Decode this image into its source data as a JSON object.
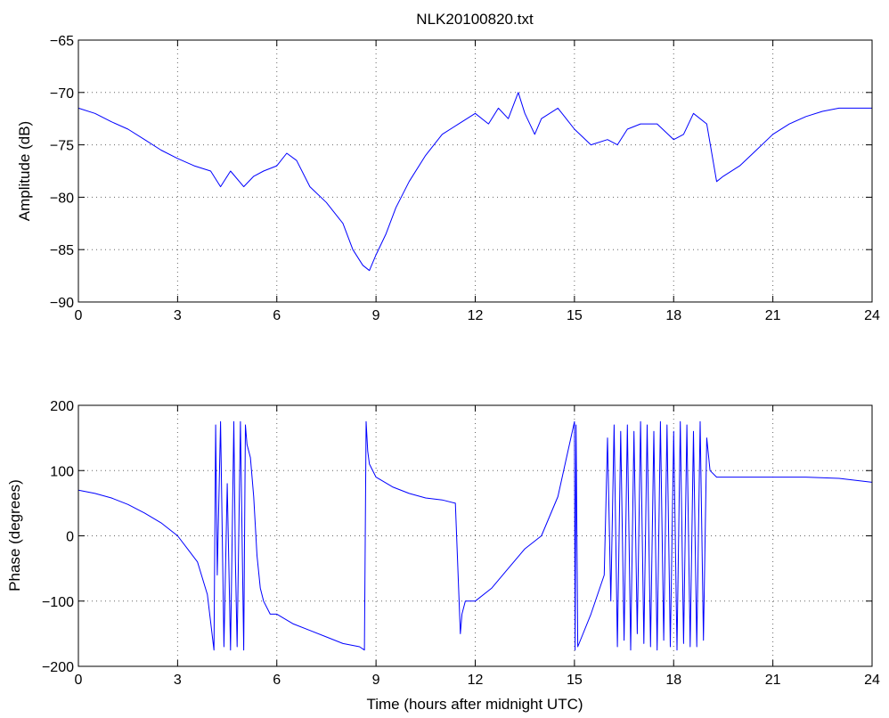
{
  "title": "NLK20100820.txt",
  "colors": {
    "series": "#0000ff",
    "axes": "#000000",
    "background": "#ffffff"
  },
  "chart_data": [
    {
      "type": "line",
      "title": "NLK20100820.txt",
      "xlabel": "",
      "ylabel": "Amplitude (dB)",
      "xlim": [
        0,
        24
      ],
      "ylim": [
        -90,
        -65
      ],
      "xticks": [
        0,
        3,
        6,
        9,
        12,
        15,
        18,
        21,
        24
      ],
      "yticks": [
        -90,
        -85,
        -80,
        -75,
        -70,
        -65
      ],
      "xtick_labels": [
        "0",
        "3",
        "6",
        "9",
        "12",
        "15",
        "18",
        "21",
        "24"
      ],
      "ytick_labels": [
        "−90",
        "−85",
        "−80",
        "−75",
        "−70",
        "−65"
      ],
      "grid": true,
      "legend": "none",
      "series": [
        {
          "color": "#0000ff",
          "x": [
            0,
            0.5,
            1,
            1.5,
            2,
            2.5,
            3,
            3.5,
            4,
            4.3,
            4.6,
            5,
            5.3,
            5.6,
            6,
            6.3,
            6.6,
            7,
            7.5,
            8,
            8.3,
            8.6,
            8.8,
            9,
            9.3,
            9.6,
            10,
            10.5,
            11,
            11.5,
            12,
            12.4,
            12.7,
            13,
            13.3,
            13.5,
            13.8,
            14,
            14.5,
            15,
            15.5,
            16,
            16.3,
            16.6,
            17,
            17.5,
            18,
            18.3,
            18.6,
            19,
            19.3,
            19.5,
            20,
            20.5,
            21,
            21.5,
            22,
            22.5,
            23,
            23.5,
            24
          ],
          "y": [
            -71.5,
            -72,
            -72.8,
            -73.5,
            -74.5,
            -75.5,
            -76.3,
            -77,
            -77.5,
            -79,
            -77.5,
            -79,
            -78,
            -77.5,
            -77,
            -75.8,
            -76.5,
            -79,
            -80.5,
            -82.5,
            -85,
            -86.5,
            -87,
            -85.5,
            -83.5,
            -81,
            -78.5,
            -76,
            -74,
            -73,
            -72,
            -73,
            -71.5,
            -72.5,
            -70,
            -72,
            -74,
            -72.5,
            -71.5,
            -73.5,
            -75,
            -74.5,
            -75,
            -73.5,
            -73,
            -73,
            -74.5,
            -74,
            -72,
            -73,
            -78.5,
            -78,
            -77,
            -75.5,
            -74,
            -73,
            -72.3,
            -71.8,
            -71.5,
            -71.5,
            -71.5
          ]
        }
      ]
    },
    {
      "type": "line",
      "title": "",
      "xlabel": "Time (hours after midnight UTC)",
      "ylabel": "Phase (degrees)",
      "xlim": [
        0,
        24
      ],
      "ylim": [
        -200,
        200
      ],
      "xticks": [
        0,
        3,
        6,
        9,
        12,
        15,
        18,
        21,
        24
      ],
      "yticks": [
        -200,
        -100,
        0,
        100,
        200
      ],
      "xtick_labels": [
        "0",
        "3",
        "6",
        "9",
        "12",
        "15",
        "18",
        "21",
        "24"
      ],
      "ytick_labels": [
        "−200",
        "−100",
        "0",
        "100",
        "200"
      ],
      "grid": true,
      "legend": "none",
      "series": [
        {
          "color": "#0000ff",
          "x": [
            0,
            0.5,
            1,
            1.5,
            2,
            2.5,
            3,
            3.3,
            3.6,
            3.9,
            4.1,
            4.15,
            4.2,
            4.3,
            4.4,
            4.5,
            4.6,
            4.7,
            4.75,
            4.8,
            4.9,
            5,
            5.05,
            5.1,
            5.2,
            5.3,
            5.4,
            5.5,
            5.6,
            5.8,
            6,
            6.5,
            7,
            7.5,
            8,
            8.5,
            8.65,
            8.7,
            8.75,
            8.8,
            9,
            9.5,
            10,
            10.5,
            11,
            11.4,
            11.55,
            11.6,
            11.7,
            12,
            12.5,
            13,
            13.5,
            14,
            14.5,
            15,
            15.02,
            15.05,
            15.1,
            15.5,
            15.9,
            16,
            16.1,
            16.2,
            16.3,
            16.4,
            16.5,
            16.6,
            16.7,
            16.8,
            16.9,
            17,
            17.1,
            17.2,
            17.3,
            17.4,
            17.5,
            17.6,
            17.7,
            17.8,
            17.9,
            18,
            18.1,
            18.2,
            18.3,
            18.4,
            18.5,
            18.6,
            18.7,
            18.8,
            18.9,
            19,
            19.1,
            19.3,
            20,
            21,
            22,
            23,
            24
          ],
          "y": [
            70,
            65,
            58,
            48,
            35,
            20,
            0,
            -20,
            -40,
            -90,
            -175,
            170,
            -60,
            175,
            -170,
            80,
            -175,
            175,
            -40,
            -170,
            175,
            -175,
            170,
            140,
            120,
            60,
            -30,
            -80,
            -100,
            -120,
            -120,
            -135,
            -145,
            -155,
            -165,
            -170,
            -175,
            175,
            130,
            110,
            90,
            75,
            65,
            58,
            55,
            50,
            -150,
            -120,
            -100,
            -100,
            -80,
            -50,
            -20,
            0,
            60,
            175,
            -175,
            170,
            -170,
            -120,
            -60,
            150,
            -100,
            170,
            -170,
            160,
            -160,
            170,
            -175,
            160,
            -150,
            175,
            -165,
            170,
            -170,
            160,
            -175,
            175,
            -160,
            170,
            -170,
            160,
            -175,
            175,
            -165,
            170,
            -170,
            160,
            -170,
            175,
            -160,
            150,
            100,
            90,
            90,
            90,
            90,
            88,
            82
          ]
        }
      ]
    }
  ]
}
